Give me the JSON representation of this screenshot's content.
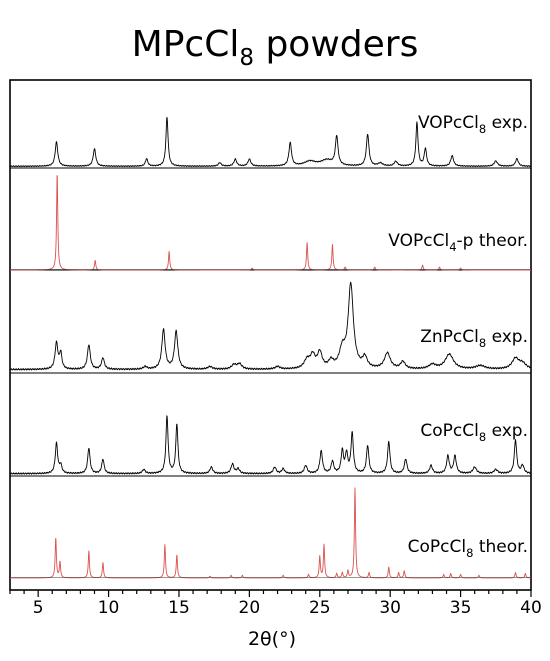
{
  "chart_data": {
    "type": "line",
    "title": "MPcCl",
    "title_subscript": "8",
    "title_suffix": " powders",
    "xlabel": "2θ(°)",
    "xlim": [
      3,
      40
    ],
    "xticks": [
      5,
      10,
      15,
      20,
      25,
      30,
      35,
      40
    ],
    "series": [
      {
        "name_parts": [
          "VOPcCl",
          "8",
          " exp."
        ],
        "color": "#000000",
        "baseline": 0.03,
        "peaks": [
          [
            6.3,
            0.42,
            0.11
          ],
          [
            9.0,
            0.3,
            0.11
          ],
          [
            12.7,
            0.13,
            0.1
          ],
          [
            14.15,
            0.85,
            0.09
          ],
          [
            17.9,
            0.06,
            0.12
          ],
          [
            19.0,
            0.12,
            0.12
          ],
          [
            20.0,
            0.12,
            0.12
          ],
          [
            22.9,
            0.4,
            0.11
          ],
          [
            24.3,
            0.08,
            0.5
          ],
          [
            25.5,
            0.1,
            0.5
          ],
          [
            26.2,
            0.5,
            0.11
          ],
          [
            28.4,
            0.55,
            0.11
          ],
          [
            29.3,
            0.05,
            0.2
          ],
          [
            30.4,
            0.08,
            0.14
          ],
          [
            31.9,
            0.75,
            0.09
          ],
          [
            32.5,
            0.3,
            0.1
          ],
          [
            34.4,
            0.18,
            0.12
          ],
          [
            37.5,
            0.09,
            0.14
          ],
          [
            39.0,
            0.13,
            0.12
          ]
        ]
      },
      {
        "name_parts": [
          "VOPcCl",
          "4",
          "-p theor."
        ],
        "color": "#d9534f",
        "envelope": "#333333",
        "baseline": 0.0,
        "peaks": [
          [
            6.35,
            1.0,
            0.05
          ],
          [
            9.05,
            0.1,
            0.05
          ],
          [
            14.3,
            0.19,
            0.05
          ],
          [
            20.2,
            0.02,
            0.05
          ],
          [
            24.1,
            0.28,
            0.05
          ],
          [
            25.9,
            0.26,
            0.05
          ],
          [
            26.8,
            0.03,
            0.05
          ],
          [
            28.9,
            0.03,
            0.05
          ],
          [
            32.3,
            0.05,
            0.05
          ],
          [
            33.5,
            0.03,
            0.05
          ],
          [
            35.0,
            0.02,
            0.05
          ]
        ]
      },
      {
        "name_parts": [
          "ZnPcCl",
          "8",
          " exp."
        ],
        "color": "#000000",
        "baseline": 0.04,
        "peaks": [
          [
            6.3,
            0.3,
            0.12
          ],
          [
            6.6,
            0.18,
            0.1
          ],
          [
            8.6,
            0.28,
            0.12
          ],
          [
            9.6,
            0.13,
            0.12
          ],
          [
            12.6,
            0.03,
            0.15
          ],
          [
            13.9,
            0.45,
            0.14
          ],
          [
            14.8,
            0.43,
            0.14
          ],
          [
            17.2,
            0.03,
            0.2
          ],
          [
            18.9,
            0.05,
            0.2
          ],
          [
            19.3,
            0.06,
            0.2
          ],
          [
            22.0,
            0.03,
            0.2
          ],
          [
            24.1,
            0.1,
            0.25
          ],
          [
            24.5,
            0.14,
            0.2
          ],
          [
            25.0,
            0.18,
            0.2
          ],
          [
            25.8,
            0.08,
            0.2
          ],
          [
            26.6,
            0.2,
            0.25
          ],
          [
            27.2,
            0.95,
            0.22
          ],
          [
            28.2,
            0.12,
            0.2
          ],
          [
            29.8,
            0.18,
            0.25
          ],
          [
            30.9,
            0.08,
            0.2
          ],
          [
            33.0,
            0.05,
            0.3
          ],
          [
            34.2,
            0.17,
            0.35
          ],
          [
            36.4,
            0.04,
            0.4
          ],
          [
            38.9,
            0.12,
            0.3
          ],
          [
            39.4,
            0.06,
            0.3
          ]
        ]
      },
      {
        "name_parts": [
          "CoPcCl",
          "8",
          " exp."
        ],
        "color": "#000000",
        "baseline": 0.03,
        "peaks": [
          [
            6.3,
            0.38,
            0.1
          ],
          [
            6.6,
            0.1,
            0.1
          ],
          [
            8.6,
            0.32,
            0.1
          ],
          [
            9.6,
            0.18,
            0.1
          ],
          [
            12.5,
            0.05,
            0.12
          ],
          [
            14.15,
            0.72,
            0.09
          ],
          [
            14.85,
            0.62,
            0.09
          ],
          [
            17.3,
            0.08,
            0.12
          ],
          [
            18.8,
            0.12,
            0.12
          ],
          [
            19.2,
            0.06,
            0.12
          ],
          [
            21.8,
            0.08,
            0.12
          ],
          [
            22.4,
            0.06,
            0.12
          ],
          [
            24.0,
            0.1,
            0.12
          ],
          [
            25.1,
            0.28,
            0.11
          ],
          [
            25.9,
            0.15,
            0.11
          ],
          [
            26.6,
            0.28,
            0.1
          ],
          [
            26.9,
            0.24,
            0.1
          ],
          [
            27.3,
            0.5,
            0.1
          ],
          [
            28.4,
            0.35,
            0.1
          ],
          [
            29.9,
            0.4,
            0.1
          ],
          [
            31.1,
            0.18,
            0.11
          ],
          [
            32.9,
            0.1,
            0.12
          ],
          [
            34.1,
            0.22,
            0.11
          ],
          [
            34.6,
            0.22,
            0.11
          ],
          [
            36.0,
            0.08,
            0.15
          ],
          [
            37.5,
            0.05,
            0.15
          ],
          [
            38.9,
            0.42,
            0.1
          ],
          [
            39.4,
            0.1,
            0.12
          ]
        ]
      },
      {
        "name_parts": [
          "CoPcCl",
          "8",
          " theor."
        ],
        "color": "#d9534f",
        "envelope": "#333333",
        "baseline": 0.0,
        "peaks": [
          [
            6.25,
            0.45,
            0.05
          ],
          [
            6.55,
            0.18,
            0.05
          ],
          [
            8.6,
            0.3,
            0.05
          ],
          [
            9.6,
            0.17,
            0.05
          ],
          [
            14.0,
            0.37,
            0.05
          ],
          [
            14.85,
            0.26,
            0.05
          ],
          [
            17.2,
            0.02,
            0.05
          ],
          [
            18.7,
            0.03,
            0.05
          ],
          [
            19.5,
            0.03,
            0.05
          ],
          [
            22.4,
            0.03,
            0.05
          ],
          [
            24.2,
            0.04,
            0.05
          ],
          [
            25.0,
            0.24,
            0.05
          ],
          [
            25.3,
            0.37,
            0.05
          ],
          [
            26.2,
            0.05,
            0.05
          ],
          [
            26.6,
            0.06,
            0.05
          ],
          [
            27.0,
            0.08,
            0.05
          ],
          [
            27.5,
            1.0,
            0.05
          ],
          [
            28.5,
            0.06,
            0.05
          ],
          [
            29.9,
            0.12,
            0.05
          ],
          [
            30.6,
            0.06,
            0.05
          ],
          [
            31.0,
            0.08,
            0.05
          ],
          [
            33.8,
            0.04,
            0.05
          ],
          [
            34.3,
            0.05,
            0.05
          ],
          [
            35.0,
            0.04,
            0.05
          ],
          [
            36.3,
            0.03,
            0.05
          ],
          [
            38.9,
            0.06,
            0.05
          ],
          [
            39.6,
            0.05,
            0.05
          ]
        ]
      }
    ]
  }
}
